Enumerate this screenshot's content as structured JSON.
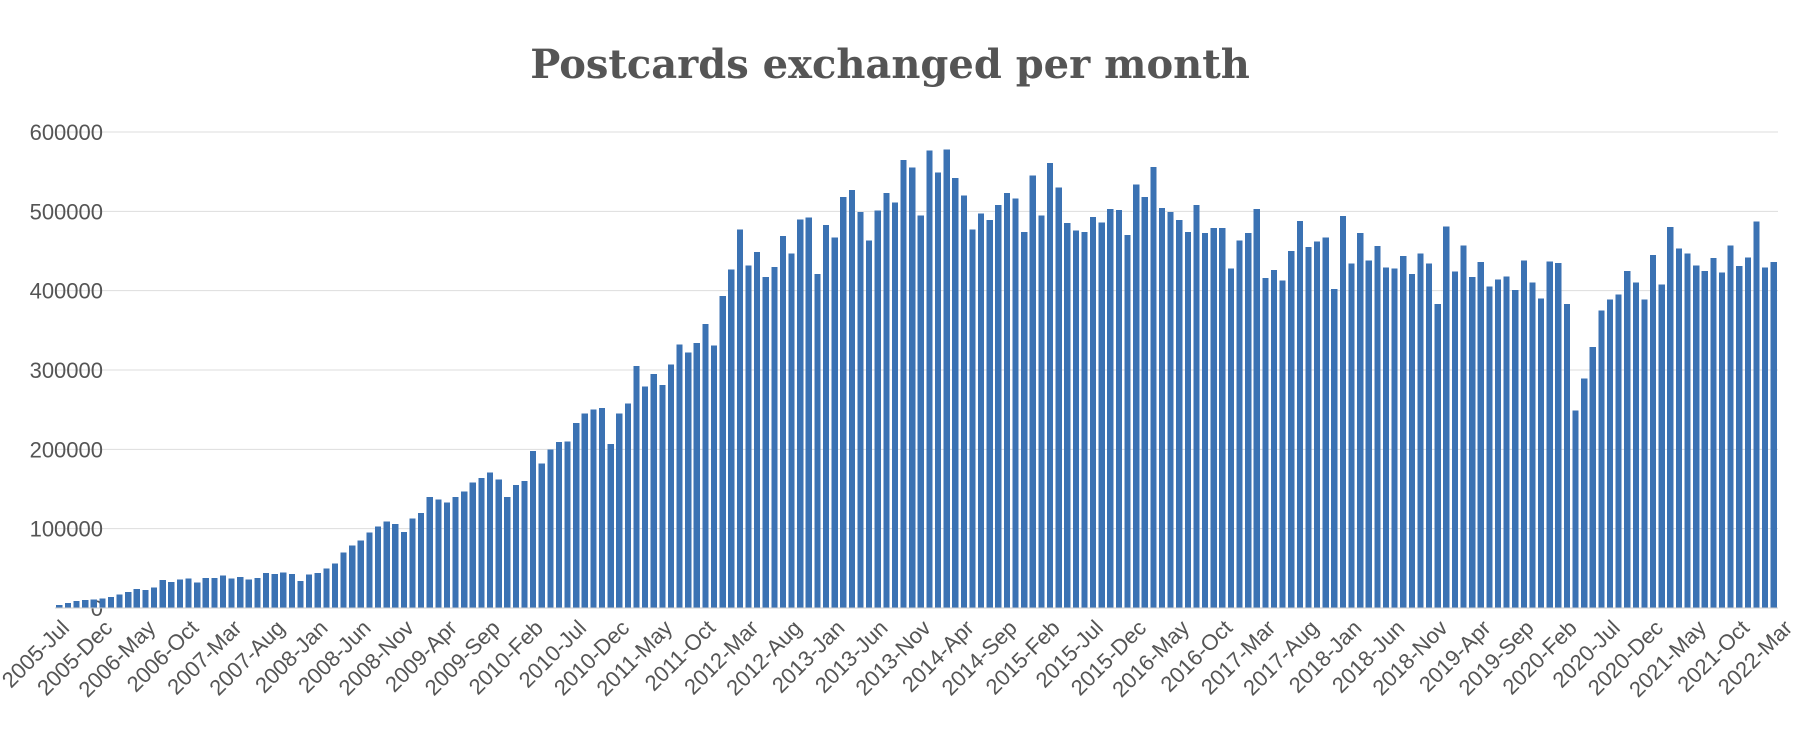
{
  "chart_data": {
    "type": "bar",
    "title": "Postcards exchanged per month",
    "xlabel": "",
    "ylabel": "",
    "ylim": [
      0,
      600000
    ],
    "y_ticks": [
      0,
      100000,
      200000,
      300000,
      400000,
      500000,
      600000
    ],
    "y_tick_labels": [
      "0",
      "100000",
      "200000",
      "300000",
      "400000",
      "500000",
      "600000"
    ],
    "grid": true,
    "legend": "none",
    "bar_color": "#3b72b3",
    "start_month": "2005-Jul",
    "x_tick_labels": [
      "2005-Jul",
      "2005-Dec",
      "2006-May",
      "2006-Oct",
      "2007-Mar",
      "2007-Aug",
      "2008-Jan",
      "2008-Jun",
      "2008-Nov",
      "2009-Apr",
      "2009-Sep",
      "2010-Feb",
      "2010-Jul",
      "2010-Dec",
      "2011-May",
      "2011-Oct",
      "2012-Mar",
      "2012-Aug",
      "2013-Jan",
      "2013-Jun",
      "2013-Nov",
      "2014-Apr",
      "2014-Sep",
      "2015-Feb",
      "2015-Jul",
      "2015-Dec",
      "2016-May",
      "2016-Oct",
      "2017-Mar",
      "2017-Aug",
      "2018-Jan",
      "2018-Jun",
      "2018-Nov",
      "2019-Apr",
      "2019-Sep",
      "2020-Feb",
      "2020-Jul",
      "2020-Dec",
      "2021-May",
      "2021-Oct",
      "2022-Mar"
    ],
    "series": [
      {
        "values": [
          4000,
          6000,
          9000,
          10000,
          11000,
          12000,
          14000,
          17000,
          20000,
          24000,
          23000,
          26000,
          35000,
          33000,
          36000,
          37000,
          32000,
          38000,
          38000,
          41000,
          37000,
          39000,
          36000,
          38000,
          44000,
          43000,
          45000,
          43000,
          34000,
          42000,
          44000,
          50000,
          56000,
          70000,
          79000,
          85000,
          95000,
          103000,
          109000,
          106000,
          96000,
          113000,
          120000,
          140000,
          137000,
          133000,
          140000,
          147000,
          158000,
          164000,
          171000,
          162000,
          140000,
          155000,
          160000,
          198000,
          182000,
          200000,
          209000,
          210000,
          233000,
          245000,
          250000,
          252000,
          207000,
          245000,
          258000,
          305000,
          279000,
          295000,
          281000,
          307000,
          332000,
          322000,
          334000,
          358000,
          331000,
          393000,
          427000,
          477000,
          432000,
          449000,
          417000,
          430000,
          469000,
          447000,
          490000,
          492000,
          421000,
          483000,
          467000,
          518000,
          527000,
          499000,
          463000,
          501000,
          523000,
          511000,
          565000,
          555000,
          495000,
          577000,
          549000,
          578000,
          542000,
          520000,
          477000,
          497000,
          489000,
          508000,
          523000,
          516000,
          474000,
          545000,
          495000,
          561000,
          530000,
          485000,
          476000,
          474000,
          493000,
          486000,
          503000,
          502000,
          470000,
          534000,
          518000,
          556000,
          504000,
          499000,
          489000,
          474000,
          508000,
          473000,
          479000,
          479000,
          428000,
          463000,
          473000,
          503000,
          416000,
          426000,
          413000,
          450000,
          488000,
          455000,
          462000,
          467000,
          402000,
          494000,
          434000,
          473000,
          438000,
          456000,
          429000,
          428000,
          444000,
          421000,
          447000,
          434000,
          383000,
          481000,
          424000,
          457000,
          417000,
          436000,
          405000,
          414000,
          418000,
          401000,
          438000,
          410000,
          390000,
          437000,
          435000,
          383000,
          249000,
          289000,
          329000,
          375000,
          389000,
          395000,
          425000,
          410000,
          389000,
          445000,
          408000,
          480000,
          453000,
          447000,
          432000,
          425000,
          441000,
          423000,
          457000,
          431000,
          442000,
          487000,
          429000,
          436000
        ]
      }
    ]
  }
}
